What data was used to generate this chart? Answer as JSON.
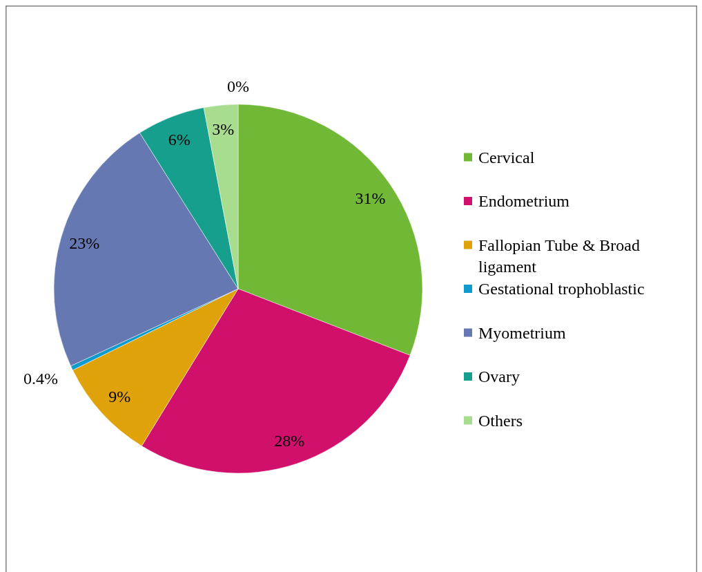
{
  "chart_data": {
    "type": "pie",
    "categories": [
      "Cervical",
      "Endometrium",
      "Fallopian Tube & Broad ligament",
      "Gestational trophoblastic",
      "Myometrium",
      "Ovary",
      "Others",
      null
    ],
    "values": [
      31,
      28,
      9,
      0.4,
      23,
      6,
      3,
      0
    ],
    "colors": [
      "#70b836",
      "#d0106b",
      "#e0a20b",
      "#0f9bcb",
      "#6678b1",
      "#169f8c",
      "#a8dd8f",
      null
    ],
    "value_labels": [
      "31%",
      "28%",
      "9%",
      "0.4%",
      "23%",
      "6%",
      "3%",
      "0%"
    ],
    "legend": "right"
  }
}
